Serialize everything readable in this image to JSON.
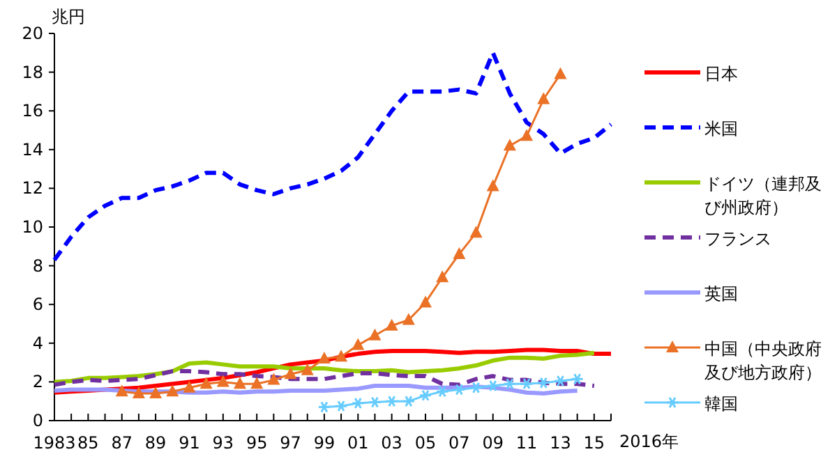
{
  "chart_data": {
    "type": "line",
    "ylabel": "兆円",
    "xlabel": "2016年",
    "xlim": [
      1983,
      2016
    ],
    "ylim": [
      0,
      20
    ],
    "yticks": [
      0,
      2,
      4,
      6,
      8,
      10,
      12,
      14,
      16,
      18,
      20
    ],
    "xticks": [
      {
        "value": 1983,
        "label": "1983"
      },
      {
        "value": 1984,
        "label": null
      },
      {
        "value": 1985,
        "label": "85"
      },
      {
        "value": 1986,
        "label": null
      },
      {
        "value": 1987,
        "label": "87"
      },
      {
        "value": 1988,
        "label": null
      },
      {
        "value": 1989,
        "label": "89"
      },
      {
        "value": 1990,
        "label": null
      },
      {
        "value": 1991,
        "label": "91"
      },
      {
        "value": 1992,
        "label": null
      },
      {
        "value": 1993,
        "label": "93"
      },
      {
        "value": 1994,
        "label": null
      },
      {
        "value": 1995,
        "label": "95"
      },
      {
        "value": 1996,
        "label": null
      },
      {
        "value": 1997,
        "label": "97"
      },
      {
        "value": 1998,
        "label": null
      },
      {
        "value": 1999,
        "label": "99"
      },
      {
        "value": 2000,
        "label": null
      },
      {
        "value": 2001,
        "label": "01"
      },
      {
        "value": 2002,
        "label": null
      },
      {
        "value": 2003,
        "label": "03"
      },
      {
        "value": 2004,
        "label": null
      },
      {
        "value": 2005,
        "label": "05"
      },
      {
        "value": 2006,
        "label": null
      },
      {
        "value": 2007,
        "label": "07"
      },
      {
        "value": 2008,
        "label": null
      },
      {
        "value": 2009,
        "label": "09"
      },
      {
        "value": 2010,
        "label": null
      },
      {
        "value": 2011,
        "label": "11"
      },
      {
        "value": 2012,
        "label": null
      },
      {
        "value": 2013,
        "label": "13"
      },
      {
        "value": 2014,
        "label": null
      },
      {
        "value": 2015,
        "label": "15"
      },
      {
        "value": 2016,
        "label": null
      }
    ],
    "grid": false,
    "legend": "right",
    "series": [
      {
        "name": "日本",
        "color": "#ff0000",
        "line_style": "solid",
        "marker": "none",
        "x": [
          1983,
          1984,
          1985,
          1986,
          1987,
          1988,
          1989,
          1990,
          1991,
          1992,
          1993,
          1994,
          1995,
          1996,
          1997,
          1998,
          1999,
          2000,
          2001,
          2002,
          2003,
          2004,
          2005,
          2006,
          2007,
          2008,
          2009,
          2010,
          2011,
          2012,
          2013,
          2014,
          2015,
          2016
        ],
        "values": [
          1.45,
          1.5,
          1.55,
          1.6,
          1.65,
          1.7,
          1.8,
          1.9,
          2.0,
          2.1,
          2.2,
          2.35,
          2.5,
          2.7,
          2.9,
          3.0,
          3.1,
          3.3,
          3.45,
          3.55,
          3.6,
          3.6,
          3.6,
          3.55,
          3.5,
          3.55,
          3.55,
          3.6,
          3.65,
          3.65,
          3.6,
          3.6,
          3.45,
          3.45
        ]
      },
      {
        "name": "米国",
        "color": "#0000ff",
        "line_style": "dashed",
        "marker": "none",
        "x": [
          1983,
          1984,
          1985,
          1986,
          1987,
          1988,
          1989,
          1990,
          1991,
          1992,
          1993,
          1994,
          1995,
          1996,
          1997,
          1998,
          1999,
          2000,
          2001,
          2002,
          2003,
          2004,
          2005,
          2006,
          2007,
          2008,
          2009,
          2010,
          2011,
          2012,
          2013,
          2014,
          2015,
          2016
        ],
        "values": [
          8.3,
          9.5,
          10.5,
          11.1,
          11.5,
          11.5,
          11.9,
          12.1,
          12.4,
          12.8,
          12.8,
          12.2,
          11.9,
          11.7,
          12.0,
          12.2,
          12.5,
          12.9,
          13.6,
          14.8,
          16.0,
          17.0,
          17.0,
          17.0,
          17.1,
          16.9,
          19.0,
          16.9,
          15.4,
          14.8,
          13.8,
          14.3,
          14.6,
          15.3
        ]
      },
      {
        "name": "ドイツ（連邦及び州政府）",
        "color": "#99cc00",
        "line_style": "solid",
        "marker": "none",
        "x": [
          1983,
          1984,
          1985,
          1986,
          1987,
          1988,
          1989,
          1990,
          1991,
          1992,
          1993,
          1994,
          1995,
          1996,
          1997,
          1998,
          1999,
          2000,
          2001,
          2002,
          2003,
          2004,
          2005,
          2006,
          2007,
          2008,
          2009,
          2010,
          2011,
          2012,
          2013,
          2014,
          2015
        ],
        "values": [
          2.0,
          2.05,
          2.2,
          2.2,
          2.25,
          2.3,
          2.4,
          2.55,
          2.95,
          3.0,
          2.9,
          2.8,
          2.8,
          2.8,
          2.7,
          2.7,
          2.7,
          2.6,
          2.55,
          2.55,
          2.6,
          2.5,
          2.55,
          2.6,
          2.7,
          2.85,
          3.1,
          3.25,
          3.25,
          3.2,
          3.35,
          3.4,
          3.5
        ]
      },
      {
        "name": "フランス",
        "color": "#7030a0",
        "line_style": "dashed",
        "marker": "none",
        "x": [
          1983,
          1984,
          1985,
          1986,
          1987,
          1988,
          1989,
          1990,
          1991,
          1992,
          1993,
          1994,
          1995,
          1996,
          1997,
          1998,
          1999,
          2000,
          2001,
          2002,
          2003,
          2004,
          2005,
          2006,
          2007,
          2008,
          2009,
          2010,
          2011,
          2012,
          2013,
          2014,
          2015
        ],
        "values": [
          1.85,
          2.0,
          2.1,
          2.05,
          2.1,
          2.15,
          2.35,
          2.55,
          2.55,
          2.5,
          2.4,
          2.4,
          2.3,
          2.25,
          2.15,
          2.15,
          2.15,
          2.3,
          2.45,
          2.45,
          2.35,
          2.3,
          2.3,
          1.9,
          1.85,
          2.15,
          2.3,
          2.1,
          2.1,
          1.95,
          1.9,
          1.9,
          1.8
        ]
      },
      {
        "name": "英国",
        "color": "#9999ff",
        "line_style": "solid",
        "marker": "none",
        "x": [
          1983,
          1984,
          1985,
          1986,
          1987,
          1988,
          1989,
          1990,
          1991,
          1992,
          1993,
          1994,
          1995,
          1996,
          1997,
          1998,
          1999,
          2000,
          2001,
          2002,
          2003,
          2004,
          2005,
          2006,
          2007,
          2008,
          2009,
          2010,
          2011,
          2012,
          2013,
          2014
        ],
        "values": [
          1.55,
          1.6,
          1.6,
          1.6,
          1.55,
          1.5,
          1.5,
          1.5,
          1.45,
          1.45,
          1.5,
          1.45,
          1.5,
          1.5,
          1.55,
          1.55,
          1.55,
          1.6,
          1.65,
          1.8,
          1.8,
          1.8,
          1.7,
          1.7,
          1.7,
          1.75,
          1.7,
          1.6,
          1.45,
          1.4,
          1.5,
          1.55
        ]
      },
      {
        "name": "中国（中央政府及び地方政府）",
        "color": "#ea7125",
        "line_style": "solid",
        "marker": "triangle",
        "x": [
          1987,
          1988,
          1989,
          1990,
          1991,
          1992,
          1993,
          1994,
          1995,
          1996,
          1997,
          1998,
          1999,
          2000,
          2001,
          2002,
          2003,
          2004,
          2005,
          2006,
          2007,
          2008,
          2009,
          2010,
          2011,
          2012,
          2013
        ],
        "values": [
          1.5,
          1.4,
          1.4,
          1.5,
          1.7,
          1.9,
          2.0,
          1.9,
          1.9,
          2.1,
          2.4,
          2.6,
          3.2,
          3.3,
          3.9,
          4.4,
          4.9,
          5.2,
          6.1,
          7.4,
          8.6,
          9.7,
          12.1,
          14.2,
          14.7,
          16.6,
          17.9
        ]
      },
      {
        "name": "韓国",
        "color": "#66ccff",
        "line_style": "solid",
        "marker": "cross",
        "x": [
          1999,
          2000,
          2001,
          2002,
          2003,
          2004,
          2005,
          2006,
          2007,
          2008,
          2009,
          2010,
          2011,
          2012,
          2013,
          2014
        ],
        "values": [
          0.7,
          0.75,
          0.9,
          0.95,
          1.0,
          1.0,
          1.3,
          1.5,
          1.6,
          1.7,
          1.8,
          1.9,
          1.9,
          1.95,
          2.05,
          2.15
        ]
      }
    ]
  }
}
